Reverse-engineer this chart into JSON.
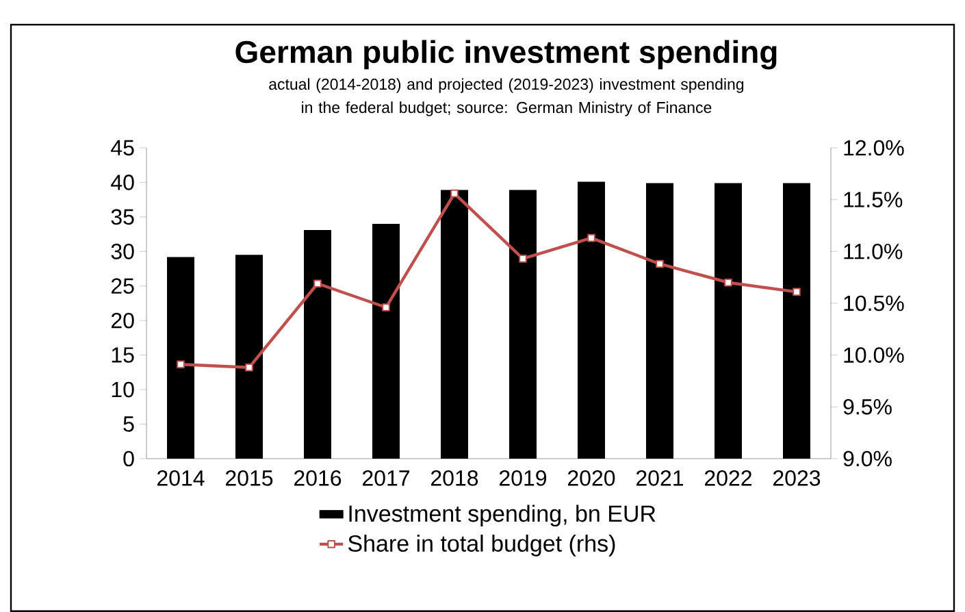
{
  "chart_data": {
    "type": "bar",
    "title": "German public investment spending",
    "subtitle": "actual (2014-2018) and projected (2019-2023) investment spending in the federal budget;  source: German Ministry of Finance",
    "categories": [
      "2014",
      "2015",
      "2016",
      "2017",
      "2018",
      "2019",
      "2020",
      "2021",
      "2022",
      "2023"
    ],
    "series": [
      {
        "name": "Investment spending, bn EUR",
        "color": "#000000",
        "values": [
          29.2,
          29.5,
          33.1,
          34.0,
          38.9,
          38.9,
          40.1,
          39.9,
          39.9,
          39.9
        ]
      },
      {
        "name": "Share in total budget (rhs)",
        "type": "line",
        "axis": "y2",
        "color": "#c0504d",
        "values": [
          9.91,
          9.88,
          10.69,
          10.46,
          11.56,
          10.93,
          11.13,
          10.88,
          10.7,
          10.61
        ]
      }
    ],
    "ylim": [
      0,
      45
    ],
    "yticks": [
      0,
      5,
      10,
      15,
      20,
      25,
      30,
      35,
      40,
      45
    ],
    "y2lim": [
      9,
      12
    ],
    "y2ticks": [
      {
        "value": 9,
        "label": "9.0%"
      },
      {
        "value": 9.5,
        "label": "9.5%"
      },
      {
        "value": 10,
        "label": "10.0%"
      },
      {
        "value": 10.5,
        "label": "10.5%"
      },
      {
        "value": 11,
        "label": "11.0%"
      },
      {
        "value": 11.5,
        "label": "11.5%"
      },
      {
        "value": 12,
        "label": "12.0%"
      }
    ],
    "legend": "bottom",
    "marker": "square",
    "grid": false
  }
}
